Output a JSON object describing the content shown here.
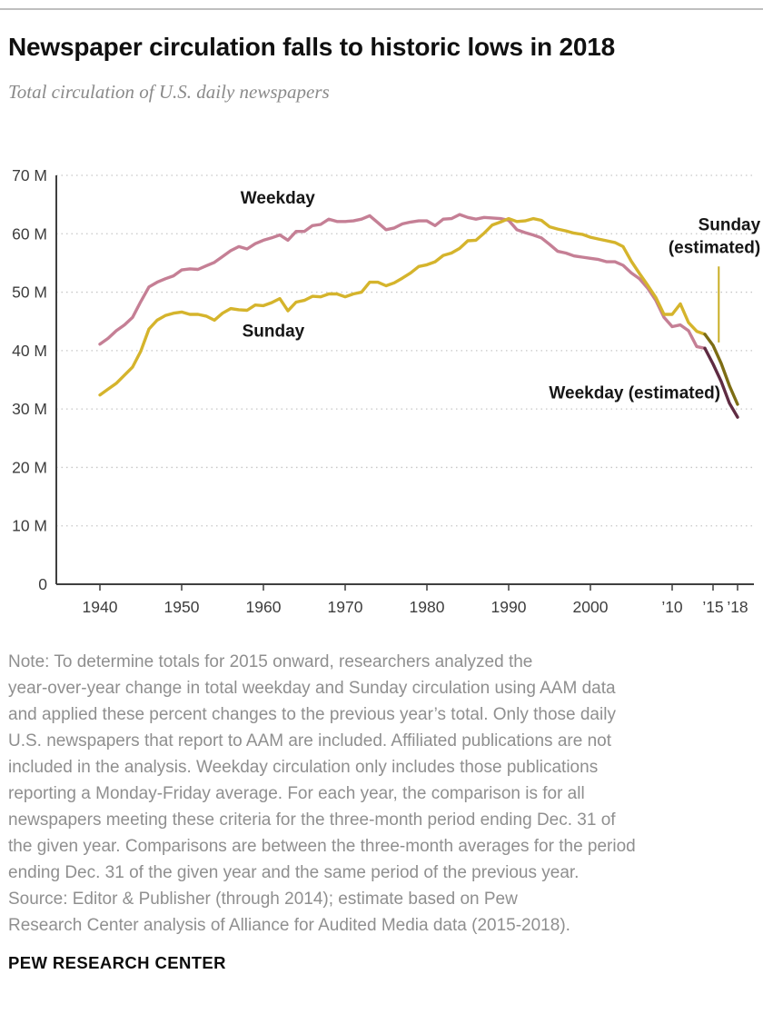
{
  "header": {
    "title": "Newspaper circulation falls to historic lows in 2018",
    "subtitle": "Total circulation of U.S. daily newspapers"
  },
  "footer": {
    "note": "Note: To determine totals for 2015 onward, researchers analyzed the\nyear-over-year change in total weekday and Sunday circulation using AAM data\nand applied these percent changes to the previous year’s total. Only those daily\nU.S. newspapers that report to AAM are included. Affiliated publications are not\nincluded in the analysis. Weekday circulation only includes those publications\nreporting a Monday-Friday average. For each year, the comparison is for all\nnewspapers meeting these criteria for the three-month period ending Dec. 31 of\nthe given year. Comparisons are between the three-month averages for the period\nending Dec. 31 of the given year and the same period of the previous year.",
    "source": "Source: Editor & Publisher (through 2014); estimate based on Pew\nResearch Center analysis of Alliance for Audited Media data (2015-2018).",
    "brand": "PEW RESEARCH CENTER"
  },
  "chart_data": {
    "type": "line",
    "title": "Newspaper circulation falls to historic lows in 2018",
    "subtitle": "Total circulation of U.S. daily newspapers",
    "unit": "millions of copies",
    "ylim": [
      0,
      70
    ],
    "grid": "horizontal-dotted",
    "legend_position": "inline-annotations",
    "yticks": [
      {
        "value": 70,
        "label": "70 M"
      },
      {
        "value": 60,
        "label": "60 M"
      },
      {
        "value": 50,
        "label": "50 M"
      },
      {
        "value": 40,
        "label": "40 M"
      },
      {
        "value": 30,
        "label": "30 M"
      },
      {
        "value": 20,
        "label": "20 M"
      },
      {
        "value": 10,
        "label": "10 M"
      },
      {
        "value": 0,
        "label": "0"
      }
    ],
    "xticks": [
      {
        "year": 1940,
        "label": "1940"
      },
      {
        "year": 1950,
        "label": "1950"
      },
      {
        "year": 1960,
        "label": "1960"
      },
      {
        "year": 1970,
        "label": "1970"
      },
      {
        "year": 1980,
        "label": "1980"
      },
      {
        "year": 1990,
        "label": "1990"
      },
      {
        "year": 2000,
        "label": "2000"
      },
      {
        "year": 2010,
        "label": "’10"
      },
      {
        "year": 2015,
        "label": "’15"
      },
      {
        "year": 2018,
        "label": "’18"
      }
    ],
    "series": [
      {
        "name": "Weekday",
        "color": "#c57f95",
        "start_year": 1940,
        "values": [
          41.1,
          42.1,
          43.4,
          44.4,
          45.7,
          48.4,
          50.9,
          51.7,
          52.3,
          52.8,
          53.8,
          54.0,
          53.9,
          54.5,
          55.1,
          56.1,
          57.1,
          57.8,
          57.4,
          58.3,
          58.9,
          59.3,
          59.8,
          58.9,
          60.4,
          60.4,
          61.4,
          61.6,
          62.5,
          62.1,
          62.1,
          62.2,
          62.5,
          63.1,
          61.9,
          60.7,
          61.0,
          61.7,
          62.0,
          62.2,
          62.2,
          61.4,
          62.5,
          62.6,
          63.3,
          62.8,
          62.5,
          62.8,
          62.7,
          62.6,
          62.3,
          60.7,
          60.2,
          59.8,
          59.3,
          58.2,
          57.0,
          56.7,
          56.2,
          56.0,
          55.8,
          55.6,
          55.2,
          55.2,
          54.6,
          53.3,
          52.3,
          50.7,
          48.6,
          45.7,
          44.1,
          44.4,
          43.4,
          40.7,
          40.4
        ]
      },
      {
        "name": "Sunday",
        "color": "#d5b42c",
        "start_year": 1940,
        "values": [
          32.4,
          33.4,
          34.4,
          35.8,
          37.2,
          39.9,
          43.7,
          45.2,
          46.0,
          46.4,
          46.6,
          46.2,
          46.2,
          45.9,
          45.2,
          46.4,
          47.2,
          47.0,
          46.9,
          47.8,
          47.7,
          48.2,
          48.9,
          46.8,
          48.3,
          48.6,
          49.3,
          49.2,
          49.7,
          49.7,
          49.2,
          49.7,
          50.0,
          51.7,
          51.7,
          51.1,
          51.6,
          52.4,
          53.3,
          54.4,
          54.7,
          55.2,
          56.3,
          56.7,
          57.5,
          58.8,
          58.9,
          60.1,
          61.5,
          62.0,
          62.6,
          62.1,
          62.2,
          62.6,
          62.3,
          61.2,
          60.8,
          60.5,
          60.1,
          59.9,
          59.4,
          59.1,
          58.8,
          58.5,
          57.8,
          55.3,
          53.2,
          51.2,
          49.1,
          46.2,
          46.2,
          48.0,
          44.8,
          43.3,
          42.8
        ]
      },
      {
        "name": "Weekday (estimated)",
        "color": "#5f2b42",
        "start_year": 2014,
        "values": [
          40.4,
          37.7,
          34.7,
          31.0,
          28.6
        ]
      },
      {
        "name": "Sunday (estimated)",
        "color": "#7d6d14",
        "start_year": 2014,
        "values": [
          42.8,
          40.9,
          37.8,
          34.0,
          30.8
        ]
      }
    ],
    "annotations": [
      {
        "text": "Weekday",
        "year": 1957.2,
        "value": 65.2,
        "anchor": "start"
      },
      {
        "text": "Sunday",
        "year": 1957.4,
        "value": 42.4,
        "anchor": "start"
      },
      {
        "text": "Weekday (estimated)",
        "year": 2015.9,
        "value": 31.8,
        "anchor": "end"
      },
      {
        "text": "Sunday\n(estimated)",
        "year": 2020.8,
        "value": 60.6,
        "anchor": "end",
        "leader": {
          "year": 2015.7,
          "value_from": 54.4,
          "value_to": 41.4,
          "color": "#c9ad25"
        }
      }
    ]
  }
}
